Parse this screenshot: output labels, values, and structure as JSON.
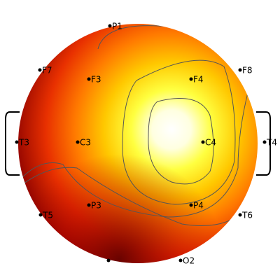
{
  "electrodes": [
    {
      "label": "P1"
    },
    {
      "label": "F7"
    },
    {
      "label": "F3"
    },
    {
      "label": "F4"
    },
    {
      "label": "F8"
    },
    {
      "label": "T3"
    },
    {
      "label": "C3"
    },
    {
      "label": "C4"
    },
    {
      "label": "T4"
    },
    {
      "label": "T5"
    },
    {
      "label": "P3"
    },
    {
      "label": "P4"
    },
    {
      "label": "T6"
    },
    {
      "label": "O2"
    }
  ]
}
